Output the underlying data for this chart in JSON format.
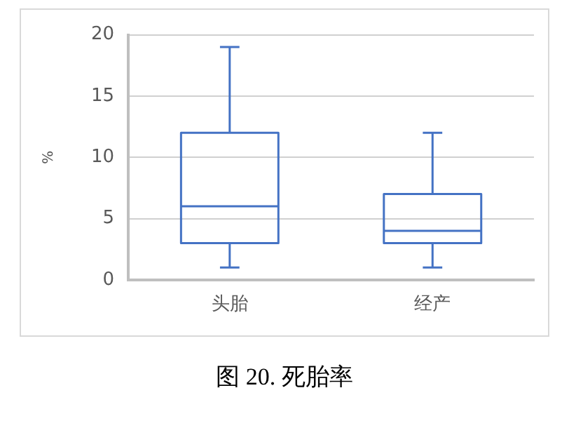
{
  "chart_data": {
    "type": "box",
    "title": "图 20. 死胎率",
    "ylabel": "%",
    "categories": [
      "头胎",
      "经产"
    ],
    "boxes": [
      {
        "low": 1,
        "q1": 3,
        "median": 6,
        "q3": 12,
        "high": 19
      },
      {
        "low": 1,
        "q1": 3,
        "median": 4,
        "q3": 7,
        "high": 12
      }
    ],
    "color": "#4472c4",
    "ylim": [
      0,
      20
    ],
    "yticks": [
      0,
      5,
      10,
      15,
      20
    ],
    "grid": "y",
    "legend": false
  }
}
